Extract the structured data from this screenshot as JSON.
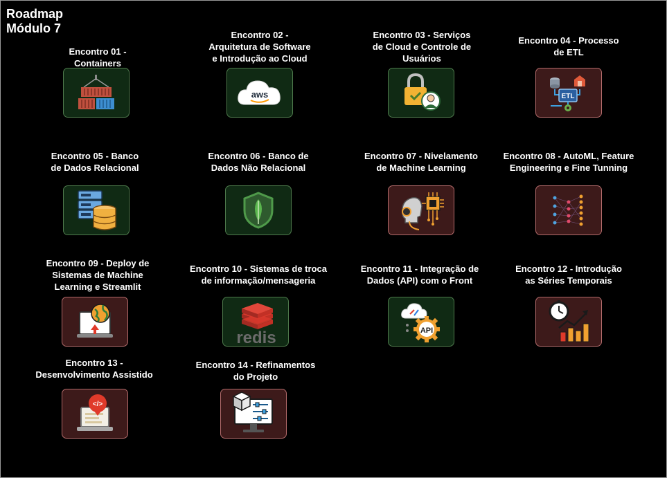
{
  "title": "Roadmap\nMódulo 7",
  "colors": {
    "background": "#000000",
    "green_box": "#102a14",
    "green_border": "#4e7a4c",
    "red_box": "#3d1a1a",
    "red_border": "#b36b6b"
  },
  "encontros": [
    {
      "label": "Encontro 01 -\nContainers",
      "icon": "containers-icon",
      "theme": "green"
    },
    {
      "label": "Encontro 02 -\nArquitetura de Software\ne Introdução ao Cloud",
      "icon": "aws-cloud-icon",
      "theme": "green",
      "icon_text": "aws"
    },
    {
      "label": "Encontro 03 - Serviços\nde Cloud e Controle de\nUsuários",
      "icon": "user-lock-icon",
      "theme": "green"
    },
    {
      "label": "Encontro 04 - Processo\nde ETL",
      "icon": "etl-icon",
      "theme": "red",
      "icon_text": "ETL"
    },
    {
      "label": "Encontro 05 - Banco\nde Dados Relacional",
      "icon": "database-server-icon",
      "theme": "green"
    },
    {
      "label": "Encontro 06 - Banco de\nDados Não Relacional",
      "icon": "mongodb-leaf-icon",
      "theme": "green"
    },
    {
      "label": "Encontro 07 - Nivelamento\nde Machine Learning",
      "icon": "ai-brain-chip-icon",
      "theme": "red"
    },
    {
      "label": "Encontro 08 - AutoML, Feature\nEngineering e Fine Tunning",
      "icon": "neural-network-icon",
      "theme": "red"
    },
    {
      "label": "Encontro 09 - Deploy de\nSistemas de Machine\nLearning e Streamlit",
      "icon": "deploy-globe-icon",
      "theme": "red"
    },
    {
      "label": "Encontro 10 - Sistemas de troca\nde informação/mensageria",
      "icon": "redis-icon",
      "theme": "green",
      "icon_text": "redis"
    },
    {
      "label": "Encontro 11 - Integração de\nDados (API) com o Front",
      "icon": "api-cloud-gear-icon",
      "theme": "green",
      "icon_text": "API"
    },
    {
      "label": "Encontro 12 - Introdução\nas Séries Temporais",
      "icon": "time-series-chart-icon",
      "theme": "red"
    },
    {
      "label": "Encontro 13 -\nDesenvolvimento Assistido",
      "icon": "laptop-code-icon",
      "theme": "red",
      "icon_text": "</>"
    },
    {
      "label": "Encontro 14 - Refinamentos\ndo Projeto",
      "icon": "monitor-settings-icon",
      "theme": "red"
    }
  ]
}
